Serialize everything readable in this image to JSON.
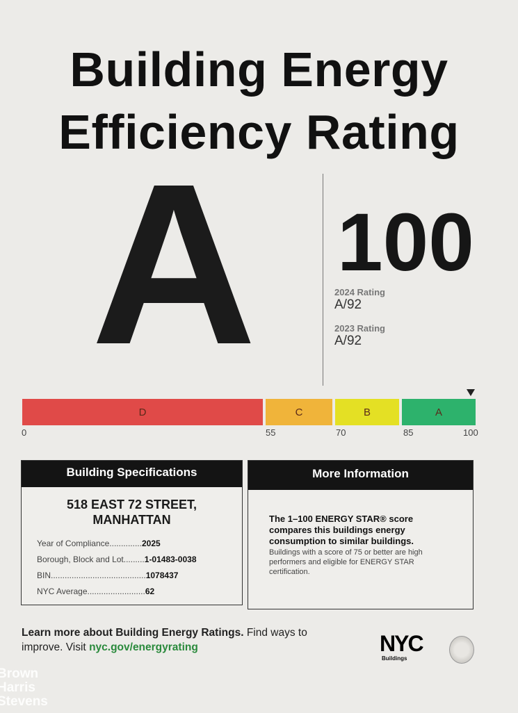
{
  "title_line1": "Building Energy",
  "title_line2": "Efficiency Rating",
  "grade": "A",
  "score": "100",
  "history": [
    {
      "label": "2024 Rating",
      "value": "A/92"
    },
    {
      "label": "2023 Rating",
      "value": "A/92"
    }
  ],
  "scale": {
    "segments": [
      {
        "label": "D",
        "color": "#e04a48"
      },
      {
        "label": "C",
        "color": "#f0b43a"
      },
      {
        "label": "B",
        "color": "#e4e024"
      },
      {
        "label": "A",
        "color": "#2db26c"
      }
    ],
    "ticks": [
      "0",
      "55",
      "70",
      "85",
      "100"
    ],
    "marker_value": 100
  },
  "specs": {
    "heading": "Building Specifications",
    "address_line1": "518 EAST 72 STREET,",
    "address_line2": "MANHATTAN",
    "rows": [
      {
        "label": "Year of Compliance..............",
        "value": "2025"
      },
      {
        "label": "Borough, Block and Lot.........",
        "value": "1-01483-0038"
      },
      {
        "label": "BIN.........................................",
        "value": "1078437"
      },
      {
        "label": "NYC Average.........................",
        "value": "62"
      }
    ]
  },
  "info": {
    "heading": "More Information",
    "bold_text": "The 1–100 ENERGY STAR® score compares this buildings energy consumption to similar buildings.",
    "text": "Buildings with a score of 75 or better are high performers and eligible for ENERGY STAR certification."
  },
  "footer": {
    "bold": "Learn more about Building Energy Ratings.",
    "text1": " Find ways to improve. Visit ",
    "link": "nyc.gov/energyrating",
    "link_color": "#2a8a3c",
    "nyc_logo": "NYC",
    "nyc_sub": "Buildings",
    "watermark": "Brown Harris Stevens"
  }
}
